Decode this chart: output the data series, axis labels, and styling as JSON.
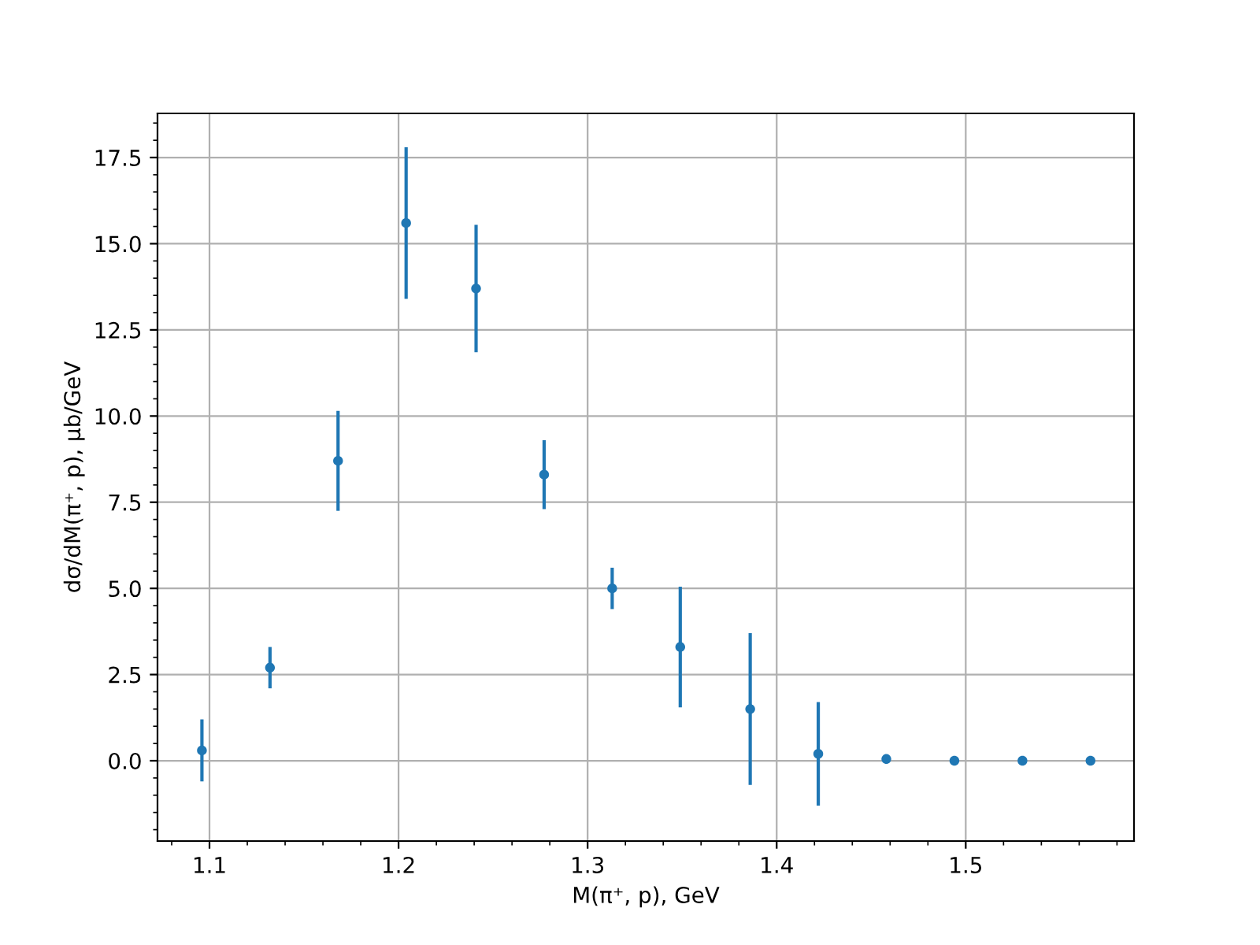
{
  "chart_data": {
    "type": "scatter",
    "xlabel": "M(π⁺, p), GeV",
    "ylabel": "dσ/dM(π⁺, p), µb/GeV",
    "x": [
      1.096,
      1.132,
      1.168,
      1.204,
      1.241,
      1.277,
      1.313,
      1.349,
      1.386,
      1.422,
      1.458,
      1.494,
      1.53,
      1.566
    ],
    "series": [
      {
        "color": "#1f77b4",
        "values": [
          0.3,
          2.7,
          8.7,
          15.6,
          13.7,
          8.3,
          5.0,
          3.3,
          1.5,
          0.2,
          0.05,
          0.0,
          0.0,
          0.0
        ],
        "errors": [
          0.9,
          0.6,
          1.45,
          2.2,
          1.85,
          1.0,
          0.6,
          1.75,
          2.2,
          1.5,
          null,
          null,
          null,
          null
        ]
      }
    ],
    "xlim": [
      1.0725,
      1.589
    ],
    "ylim": [
      -2.33,
      18.78
    ],
    "xticks": [
      1.1,
      1.2,
      1.3,
      1.4,
      1.5
    ],
    "yticks": [
      {
        "value": 0,
        "label": "0.0"
      },
      2.5,
      {
        "value": 5,
        "label": "5.0"
      },
      7.5,
      {
        "value": 10,
        "label": "10.0"
      },
      12.5,
      {
        "value": 15,
        "label": "15.0"
      },
      17.5
    ],
    "grid": true,
    "marker": "circle"
  }
}
